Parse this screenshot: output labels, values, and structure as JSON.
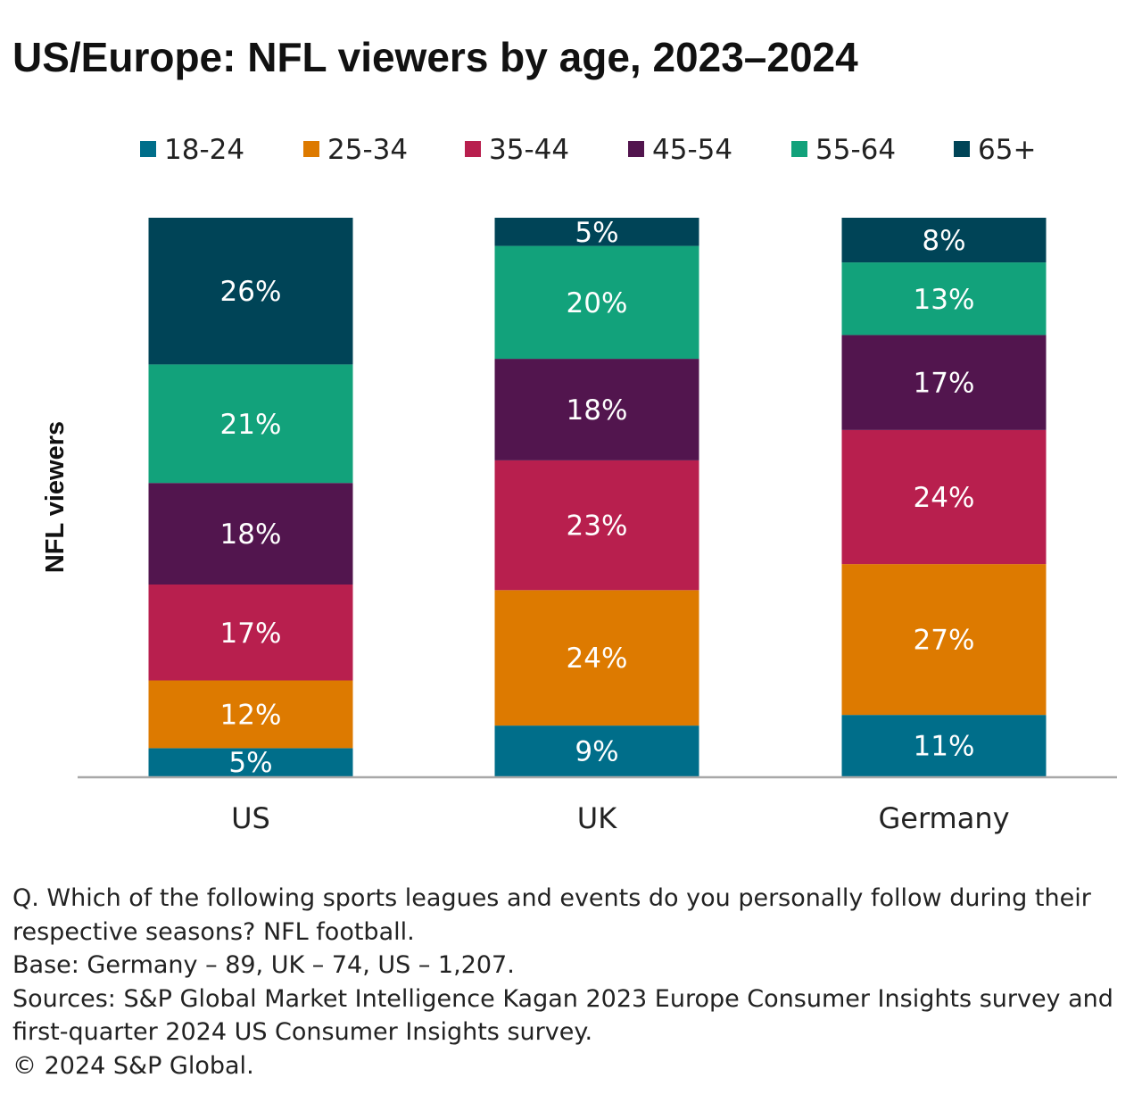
{
  "title": "US/Europe: NFL viewers by age, 2023–2024",
  "chart_data": {
    "type": "bar",
    "stacked": true,
    "title": "US/Europe: NFL viewers by age, 2023–2024",
    "ylabel": "NFL viewers",
    "xlabel": "",
    "categories": [
      "US",
      "UK",
      "Germany"
    ],
    "ylim": [
      0,
      100
    ],
    "legend_position": "top",
    "grid": false,
    "series": [
      {
        "name": "18-24",
        "color": "#006e8a",
        "values": [
          5,
          9,
          11
        ],
        "labels": [
          "5%",
          "9%",
          "11%"
        ]
      },
      {
        "name": "25-34",
        "color": "#dd7a00",
        "values": [
          12,
          24,
          27
        ],
        "labels": [
          "12%",
          "24%",
          "27%"
        ]
      },
      {
        "name": "35-44",
        "color": "#b81f4e",
        "values": [
          17,
          23,
          24
        ],
        "labels": [
          "17%",
          "23%",
          "24%"
        ]
      },
      {
        "name": "45-54",
        "color": "#52154e",
        "values": [
          18,
          18,
          17
        ],
        "labels": [
          "18%",
          "18%",
          "17%"
        ]
      },
      {
        "name": "55-64",
        "color": "#12a27b",
        "values": [
          21,
          20,
          13
        ],
        "labels": [
          "21%",
          "20%",
          "13%"
        ]
      },
      {
        "name": "65+",
        "color": "#004457",
        "values": [
          26,
          5,
          8
        ],
        "labels": [
          "26%",
          "5%",
          "8%"
        ]
      }
    ]
  },
  "footnotes": {
    "question": "Q. Which of the following sports leagues and events do you personally follow during their respective seasons? NFL football.",
    "base": "Base: Germany – 89, UK – 74, US – 1,207.",
    "sources": "Sources: S&P Global Market Intelligence Kagan 2023 Europe Consumer Insights survey and first-quarter 2024 US Consumer Insights survey.",
    "copyright": "© 2024 S&P Global."
  }
}
